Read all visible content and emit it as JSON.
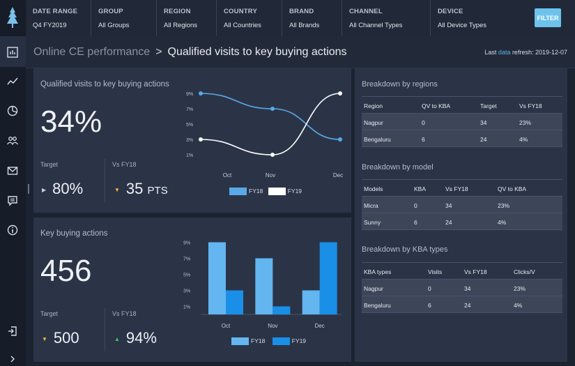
{
  "filters": [
    {
      "label": "DATE RANGE",
      "value": "Q4 FY2019"
    },
    {
      "label": "GROUP",
      "value": "All Groups"
    },
    {
      "label": "REGION",
      "value": "All Regions"
    },
    {
      "label": "COUNTRY",
      "value": "All Countries"
    },
    {
      "label": "BRAND",
      "value": "All Brands"
    },
    {
      "label": "CHANNEL",
      "value": "All Channel Types"
    },
    {
      "label": "DEVICE",
      "value": "All Device Types"
    }
  ],
  "filter_button": "FILTER",
  "breadcrumb": {
    "parent": "Online CE performance",
    "separator": ">",
    "current": "Qualified visits to key buying actions"
  },
  "refresh": {
    "prefix": "Last",
    "link": "data",
    "suffix": "refresh: 2019-12-07"
  },
  "qv_panel": {
    "title": "Qualified visits to key buying actions",
    "value": "34%",
    "target_label": "Target",
    "target_value": "80%",
    "vs_label": "Vs FY18",
    "vs_value": "35",
    "vs_unit": "PTS"
  },
  "kba_panel": {
    "title": "Key buying actions",
    "value": "456",
    "target_label": "Target",
    "target_value": "500",
    "vs_label": "Vs FY18",
    "vs_value": "94%"
  },
  "chart_data": [
    {
      "type": "line",
      "categories": [
        "Oct",
        "Nov",
        "Dec"
      ],
      "series": [
        {
          "name": "FY18",
          "values": [
            9,
            7,
            3
          ],
          "color": "#5aa9e6"
        },
        {
          "name": "FY19",
          "values": [
            3,
            1,
            9
          ],
          "color": "#ffffff"
        }
      ],
      "yticks": [
        "1%",
        "3%",
        "5%",
        "7%",
        "9%"
      ],
      "ylim": [
        0,
        10
      ]
    },
    {
      "type": "bar",
      "categories": [
        "Oct",
        "Nov",
        "Dec"
      ],
      "series": [
        {
          "name": "FY18",
          "values": [
            9,
            7,
            3
          ],
          "color": "#63b6f0"
        },
        {
          "name": "FY19",
          "values": [
            3,
            1,
            9
          ],
          "color": "#1a8fe8"
        }
      ],
      "yticks": [
        "1%",
        "3%",
        "5%",
        "7%",
        "9%"
      ],
      "ylim": [
        0,
        10
      ]
    }
  ],
  "regions": {
    "title": "Breakdown by regions",
    "headers": [
      "Region",
      "QV to KBA",
      "Target",
      "Vs FY18"
    ],
    "rows": [
      [
        "Nagpur",
        "0",
        "34",
        "23%"
      ],
      [
        "Bengaluru",
        "6",
        "24",
        "4%"
      ]
    ]
  },
  "models": {
    "title": "Breakdown by model",
    "headers": [
      "Models",
      "KBA",
      "Vs FY18",
      "QV to KBA"
    ],
    "rows": [
      [
        "Micra",
        "0",
        "34",
        "23%"
      ],
      [
        "Sunny",
        "6",
        "24",
        "4%"
      ]
    ]
  },
  "kba_types": {
    "title": "Breakdown by KBA types",
    "headers": [
      "KBA types",
      "Visits",
      "Vs FY18",
      "Clicks/V"
    ],
    "rows": [
      [
        "Nagpur",
        "0",
        "34",
        "23%"
      ],
      [
        "Bengaluru",
        "6",
        "24",
        "4%"
      ]
    ]
  },
  "colors": {
    "accent": "#6ec3ed",
    "panel": "#2b3447",
    "bg": "#1b2230",
    "down": "#f3c12e",
    "up": "#3fcf6a"
  }
}
